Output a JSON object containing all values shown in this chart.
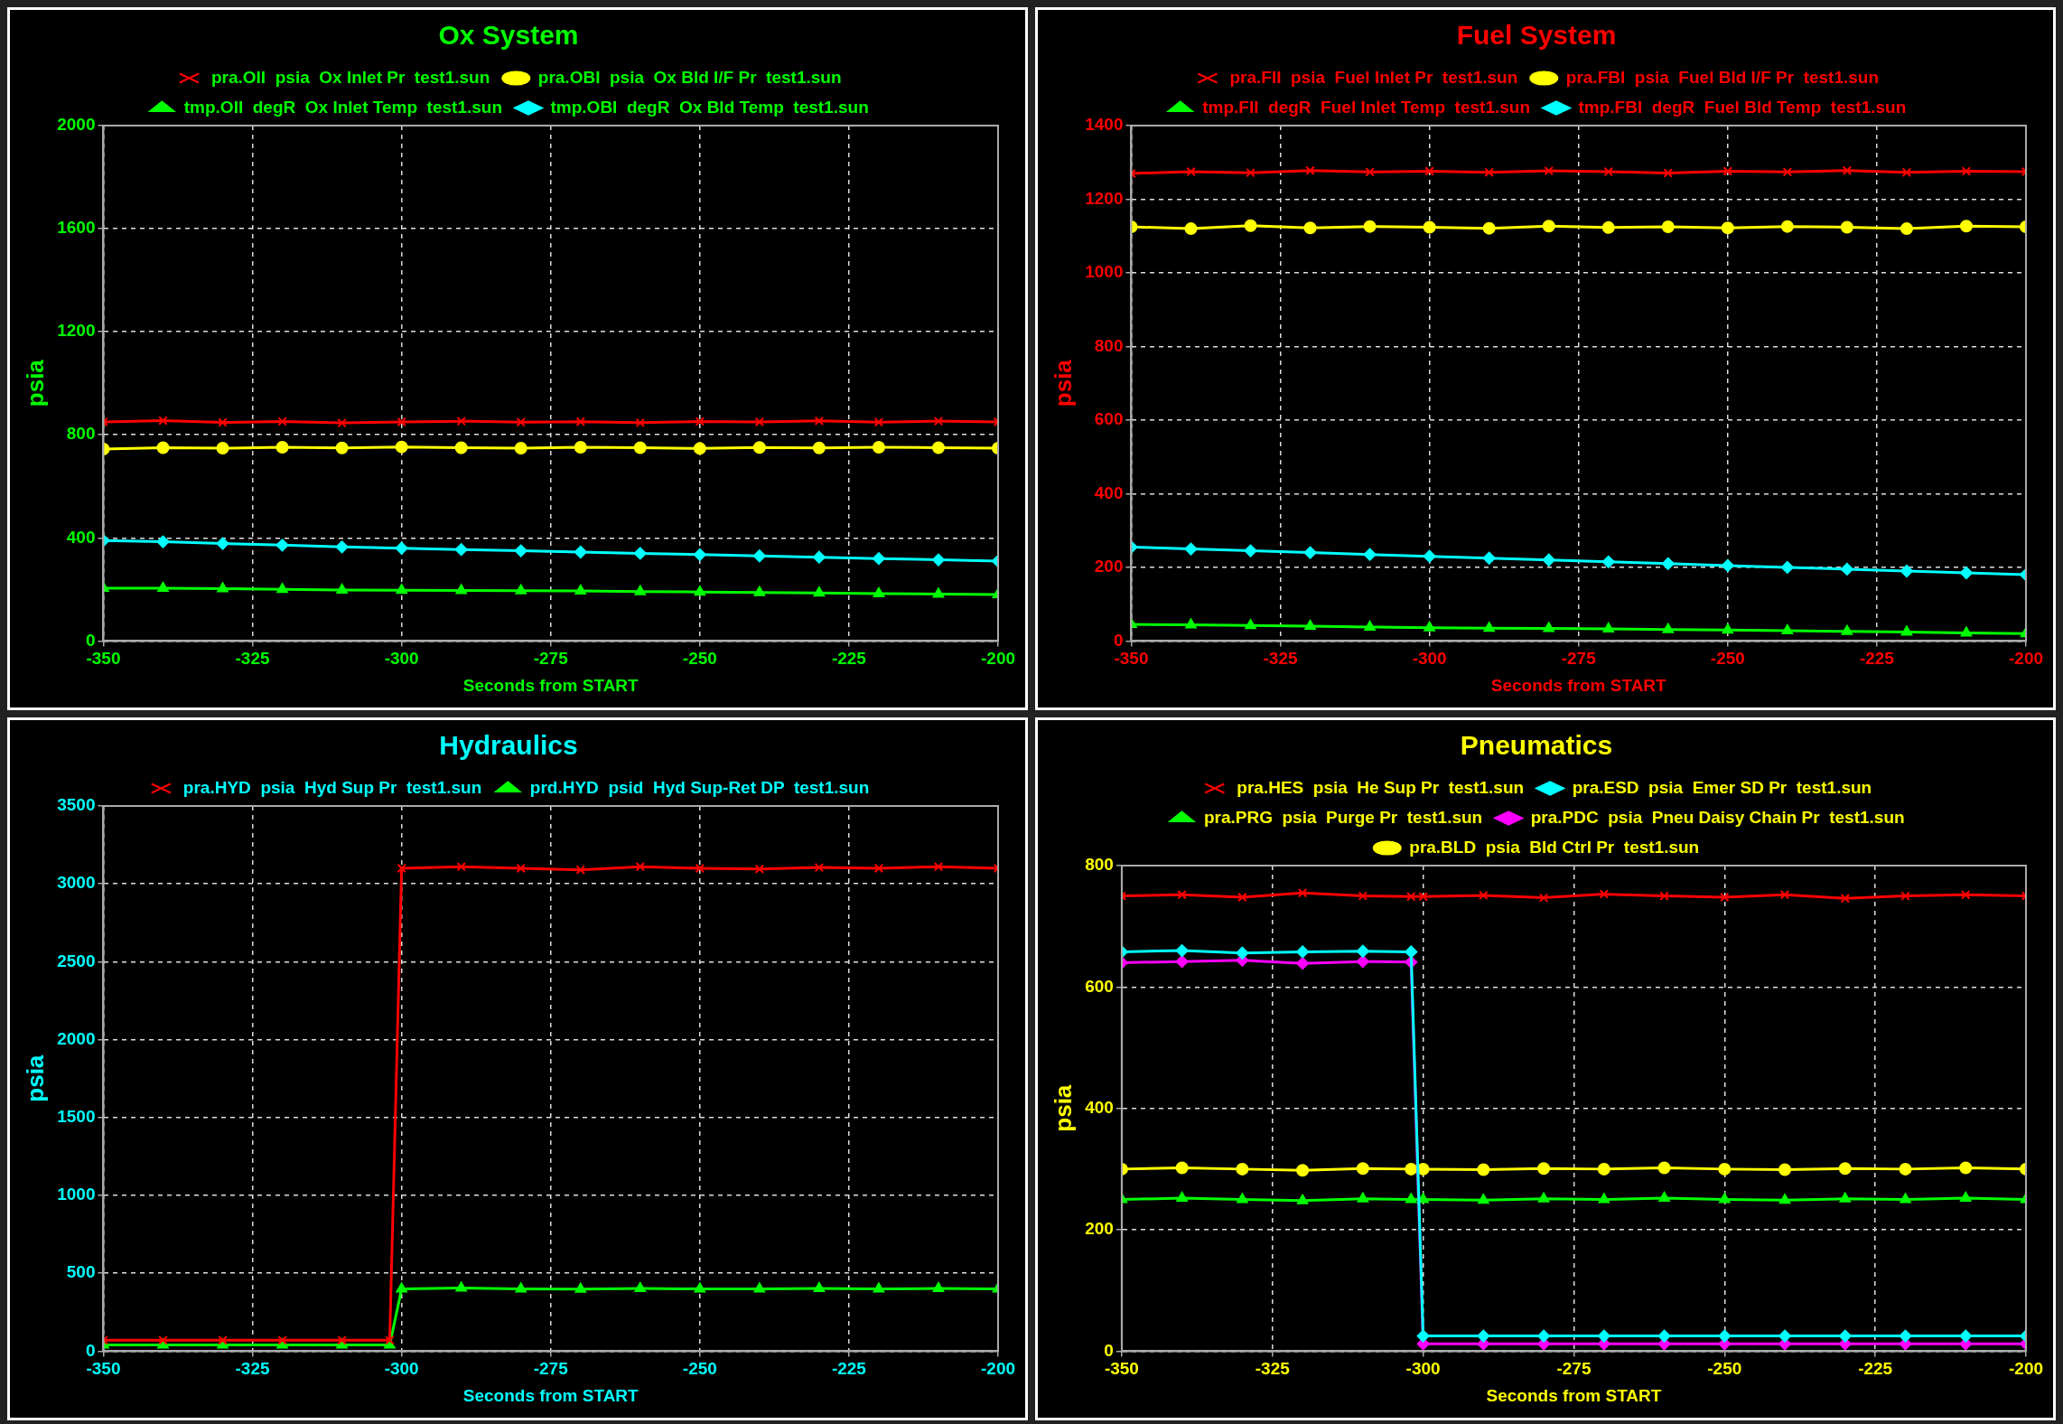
{
  "chart_data": [
    {
      "type": "line",
      "title": "Ox System",
      "xlabel": "Seconds from START",
      "ylabel": "psia",
      "xlim": [
        -350,
        -200
      ],
      "xticks": [
        -350,
        -325,
        -300,
        -275,
        -250,
        -225,
        -200
      ],
      "ylim": [
        0,
        2000
      ],
      "yticks": [
        0,
        400,
        800,
        1200,
        1600,
        2000
      ],
      "grid": true,
      "legend": "top",
      "line_style": "solid",
      "x": [
        -350,
        -340,
        -330,
        -320,
        -310,
        -300,
        -290,
        -280,
        -270,
        -260,
        -250,
        -240,
        -230,
        -220,
        -210,
        -200
      ],
      "series": [
        {
          "name": "pra.OII  psia  Ox Inlet Pr  test1.sun",
          "color": "#ff0000",
          "marker": "cross",
          "values": [
            850,
            855,
            848,
            852,
            846,
            850,
            853,
            849,
            851,
            847,
            852,
            850,
            854,
            849,
            853,
            850
          ]
        },
        {
          "name": "pra.OBI  psia  Ox Bld I/F Pr  test1.sun",
          "color": "#ffff00",
          "marker": "circle",
          "values": [
            745,
            750,
            748,
            752,
            749,
            753,
            750,
            748,
            752,
            750,
            747,
            751,
            749,
            752,
            750,
            748
          ]
        },
        {
          "name": "tmp.OII  degR  Ox Inlet Temp  test1.sun",
          "color": "#00ff00",
          "marker": "triangle",
          "values": [
            205,
            205,
            203,
            200,
            198,
            197,
            196,
            195,
            194,
            192,
            190,
            188,
            186,
            184,
            182,
            180
          ]
        },
        {
          "name": "tmp.OBI  degR  Ox Bld Temp  test1.sun",
          "color": "#00ffff",
          "marker": "diamond",
          "values": [
            390,
            385,
            378,
            372,
            365,
            360,
            355,
            350,
            345,
            340,
            335,
            330,
            325,
            320,
            315,
            310
          ]
        }
      ]
    },
    {
      "type": "line",
      "title": "Fuel System",
      "xlabel": "Seconds from START",
      "ylabel": "psia",
      "xlim": [
        -350,
        -200
      ],
      "xticks": [
        -350,
        -325,
        -300,
        -275,
        -250,
        -225,
        -200
      ],
      "ylim": [
        0,
        1400
      ],
      "yticks": [
        0,
        200,
        400,
        600,
        800,
        1000,
        1200,
        1400
      ],
      "grid": true,
      "legend": "top",
      "line_style": "solid",
      "x": [
        -350,
        -340,
        -330,
        -320,
        -310,
        -300,
        -290,
        -280,
        -270,
        -260,
        -250,
        -240,
        -230,
        -220,
        -210,
        -200
      ],
      "series": [
        {
          "name": "pra.FII  psia  Fuel Inlet Pr  test1.sun",
          "color": "#ff0000",
          "marker": "cross",
          "values": [
            1270,
            1275,
            1272,
            1278,
            1274,
            1276,
            1273,
            1277,
            1275,
            1271,
            1276,
            1274,
            1278,
            1273,
            1276,
            1275
          ]
        },
        {
          "name": "pra.FBI  psia  Fuel Bld I/F Pr  test1.sun",
          "color": "#ffff00",
          "marker": "circle",
          "values": [
            1125,
            1120,
            1128,
            1122,
            1126,
            1124,
            1121,
            1127,
            1123,
            1125,
            1122,
            1126,
            1124,
            1120,
            1127,
            1125
          ]
        },
        {
          "name": "tmp.FII  degR  Fuel Inlet Temp  test1.sun",
          "color": "#00ff00",
          "marker": "triangle",
          "values": [
            45,
            44,
            42,
            40,
            38,
            36,
            35,
            34,
            33,
            31,
            30,
            28,
            26,
            24,
            22,
            20
          ]
        },
        {
          "name": "tmp.FBI  degR  Fuel Bld Temp  test1.sun",
          "color": "#00ffff",
          "marker": "diamond",
          "values": [
            255,
            250,
            245,
            240,
            235,
            230,
            225,
            220,
            215,
            210,
            205,
            200,
            195,
            190,
            185,
            180
          ]
        }
      ]
    },
    {
      "type": "line",
      "title": "Hydraulics",
      "xlabel": "Seconds from START",
      "ylabel": "psia",
      "xlim": [
        -350,
        -200
      ],
      "xticks": [
        -350,
        -325,
        -300,
        -275,
        -250,
        -225,
        -200
      ],
      "ylim": [
        0,
        3500
      ],
      "yticks": [
        0,
        500,
        1000,
        1500,
        2000,
        2500,
        3000,
        3500
      ],
      "grid": true,
      "legend": "top",
      "line_style": "solid",
      "x": [
        -350,
        -340,
        -330,
        -320,
        -310,
        -302,
        -300,
        -290,
        -280,
        -270,
        -260,
        -250,
        -240,
        -230,
        -220,
        -210,
        -200
      ],
      "series": [
        {
          "name": "pra.HYD  psia  Hyd Sup Pr  test1.sun",
          "color": "#ff0000",
          "marker": "cross",
          "values": [
            70,
            70,
            70,
            70,
            70,
            70,
            3100,
            3110,
            3100,
            3090,
            3110,
            3100,
            3095,
            3105,
            3100,
            3110,
            3100
          ]
        },
        {
          "name": "prd.HYD  psid  Hyd Sup-Ret DP  test1.sun",
          "color": "#00ff00",
          "marker": "triangle",
          "values": [
            40,
            40,
            40,
            40,
            40,
            40,
            400,
            405,
            400,
            398,
            402,
            400,
            399,
            403,
            400,
            402,
            400
          ]
        }
      ]
    },
    {
      "type": "line",
      "title": "Pneumatics",
      "xlabel": "Seconds from START",
      "ylabel": "psia",
      "xlim": [
        -350,
        -200
      ],
      "xticks": [
        -350,
        -325,
        -300,
        -275,
        -250,
        -225,
        -200
      ],
      "ylim": [
        0,
        800
      ],
      "yticks": [
        0,
        200,
        400,
        600,
        800
      ],
      "grid": true,
      "legend": "top",
      "line_style": "solid",
      "x": [
        -350,
        -340,
        -330,
        -320,
        -310,
        -302,
        -300,
        -290,
        -280,
        -270,
        -260,
        -250,
        -240,
        -230,
        -220,
        -210,
        -200
      ],
      "series": [
        {
          "name": "pra.HES  psia  He Sup Pr  test1.sun",
          "color": "#ff0000",
          "marker": "cross",
          "values": [
            750,
            752,
            748,
            755,
            750,
            749,
            749,
            751,
            747,
            753,
            750,
            748,
            752,
            746,
            750,
            752,
            750
          ]
        },
        {
          "name": "pra.ESD  psia  Emer SD Pr  test1.sun",
          "color": "#00ffff",
          "marker": "diamond",
          "values": [
            658,
            660,
            656,
            658,
            659,
            658,
            25,
            25,
            25,
            25,
            25,
            25,
            25,
            25,
            25,
            25,
            25
          ]
        },
        {
          "name": "pra.PRG  psia  Purge Pr  test1.sun",
          "color": "#00ff00",
          "marker": "triangle",
          "values": [
            250,
            252,
            250,
            248,
            251,
            250,
            250,
            249,
            251,
            250,
            252,
            250,
            249,
            251,
            250,
            252,
            250
          ]
        },
        {
          "name": "pra.PDC  psia  Pneu Daisy Chain Pr  test1.sun",
          "color": "#ff00ff",
          "marker": "diamond",
          "values": [
            640,
            642,
            644,
            639,
            642,
            641,
            12,
            12,
            12,
            12,
            12,
            12,
            12,
            12,
            12,
            12,
            12
          ]
        },
        {
          "name": "pra.BLD  psia  Bld Ctrl Pr  test1.sun",
          "color": "#ffff00",
          "marker": "circle",
          "values": [
            300,
            302,
            300,
            298,
            301,
            300,
            300,
            299,
            301,
            300,
            302,
            300,
            299,
            301,
            300,
            302,
            300
          ]
        }
      ]
    }
  ]
}
